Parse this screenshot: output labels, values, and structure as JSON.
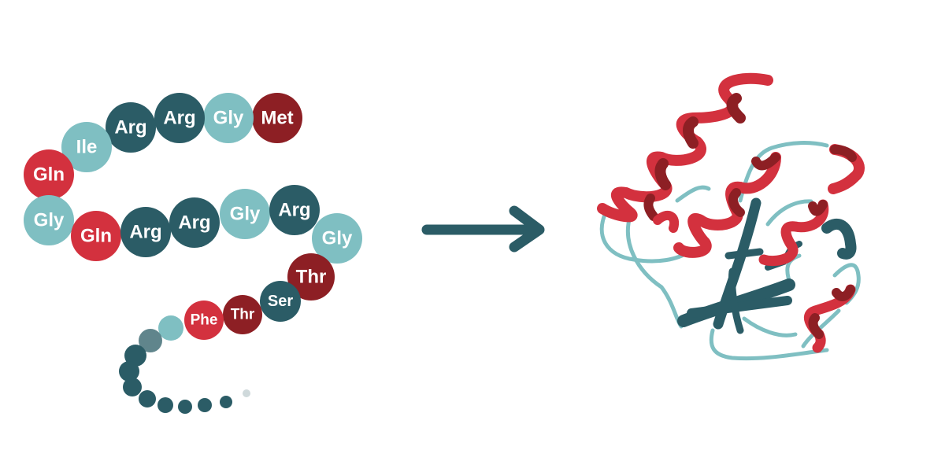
{
  "colors": {
    "dark_teal": "#2b5c66",
    "light_teal": "#7fbfc2",
    "red": "#d3313e",
    "dark_red": "#8d1f24",
    "background": "#ffffff"
  },
  "amino_acid_chain": [
    {
      "label": "Met",
      "color": "dark_red"
    },
    {
      "label": "Gly",
      "color": "light_teal"
    },
    {
      "label": "Arg",
      "color": "dark_teal"
    },
    {
      "label": "Arg",
      "color": "dark_teal"
    },
    {
      "label": "Ile",
      "color": "light_teal"
    },
    {
      "label": "Gln",
      "color": "red"
    },
    {
      "label": "Gly",
      "color": "light_teal"
    },
    {
      "label": "Gln",
      "color": "red"
    },
    {
      "label": "Arg",
      "color": "dark_teal"
    },
    {
      "label": "Arg",
      "color": "dark_teal"
    },
    {
      "label": "Gly",
      "color": "light_teal"
    },
    {
      "label": "Arg",
      "color": "dark_teal"
    },
    {
      "label": "Gly",
      "color": "light_teal"
    },
    {
      "label": "Thr",
      "color": "dark_red"
    },
    {
      "label": "Ser",
      "color": "dark_teal"
    },
    {
      "label": "Thr",
      "color": "dark_red"
    },
    {
      "label": "Phe",
      "color": "red"
    }
  ],
  "arrow": {
    "icon": "right-arrow-icon"
  },
  "folded_protein": {
    "icon": "folded-protein-ribbon"
  }
}
